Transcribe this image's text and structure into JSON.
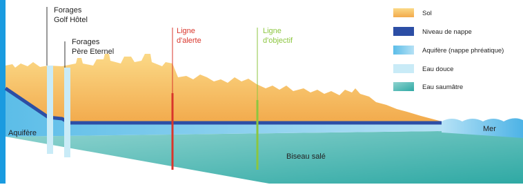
{
  "labels": {
    "forages_golf_hotel": [
      "Forages",
      "Golf Hôtel"
    ],
    "forages_pere_eternel": [
      "Forages",
      "Père Eternel"
    ],
    "ligne_alerte": [
      "Ligne",
      "d'alerte"
    ],
    "ligne_objectif": [
      "Ligne",
      "d'objectif"
    ],
    "aquifere": "Aquifère",
    "mer": "Mer",
    "biseau_sale": "Biseau salé"
  },
  "legend": [
    "Sol",
    "Niveau de nappe",
    "Aquifère (nappe phréatique)",
    "Eau douce",
    "Eau saumâtre"
  ]
}
